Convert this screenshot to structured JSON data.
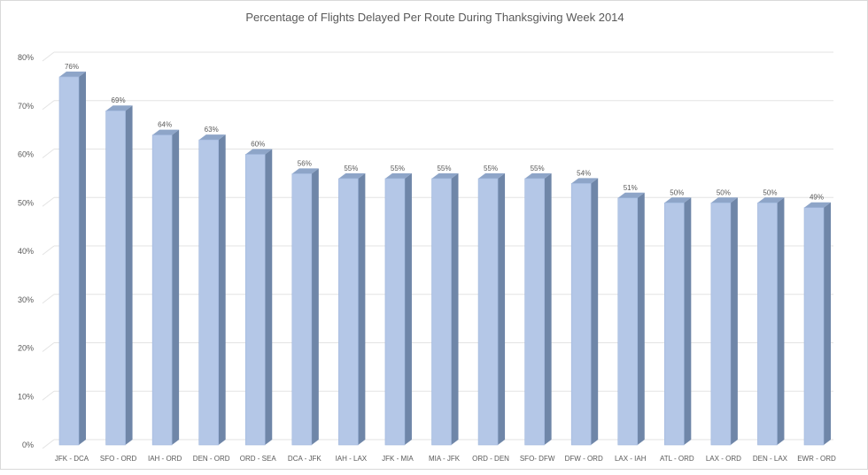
{
  "chart_data": {
    "type": "bar",
    "title": "Percentage of Flights Delayed Per Route During Thanksgiving  Week 2014",
    "xlabel": "",
    "ylabel": "",
    "ylim": [
      0,
      80
    ],
    "y_ticks": [
      "0%",
      "10%",
      "20%",
      "30%",
      "40%",
      "50%",
      "60%",
      "70%",
      "80%"
    ],
    "grid": true,
    "categories": [
      "JFK - DCA",
      "SFO - ORD",
      "IAH - ORD",
      "DEN - ORD",
      "ORD - SEA",
      "DCA - JFK",
      "IAH - LAX",
      "JFK - MIA",
      "MIA - JFK",
      "ORD - DEN",
      "SFO- DFW",
      "DFW - ORD",
      "LAX - IAH",
      "ATL - ORD",
      "LAX - ORD",
      "DEN - LAX",
      "EWR - ORD"
    ],
    "values": [
      76,
      69,
      64,
      63,
      60,
      56,
      55,
      55,
      55,
      55,
      55,
      54,
      51,
      50,
      50,
      50,
      49
    ],
    "data_labels": [
      "76%",
      "69%",
      "64%",
      "63%",
      "60%",
      "56%",
      "55%",
      "55%",
      "55%",
      "55%",
      "55%",
      "54%",
      "51%",
      "50%",
      "50%",
      "50%",
      "49%"
    ],
    "colors": {
      "front": "#b4c7e7",
      "side": "#6f86a8",
      "top": "#8ea5c8",
      "grid": "#e3e3e3",
      "text": "#595959"
    }
  }
}
